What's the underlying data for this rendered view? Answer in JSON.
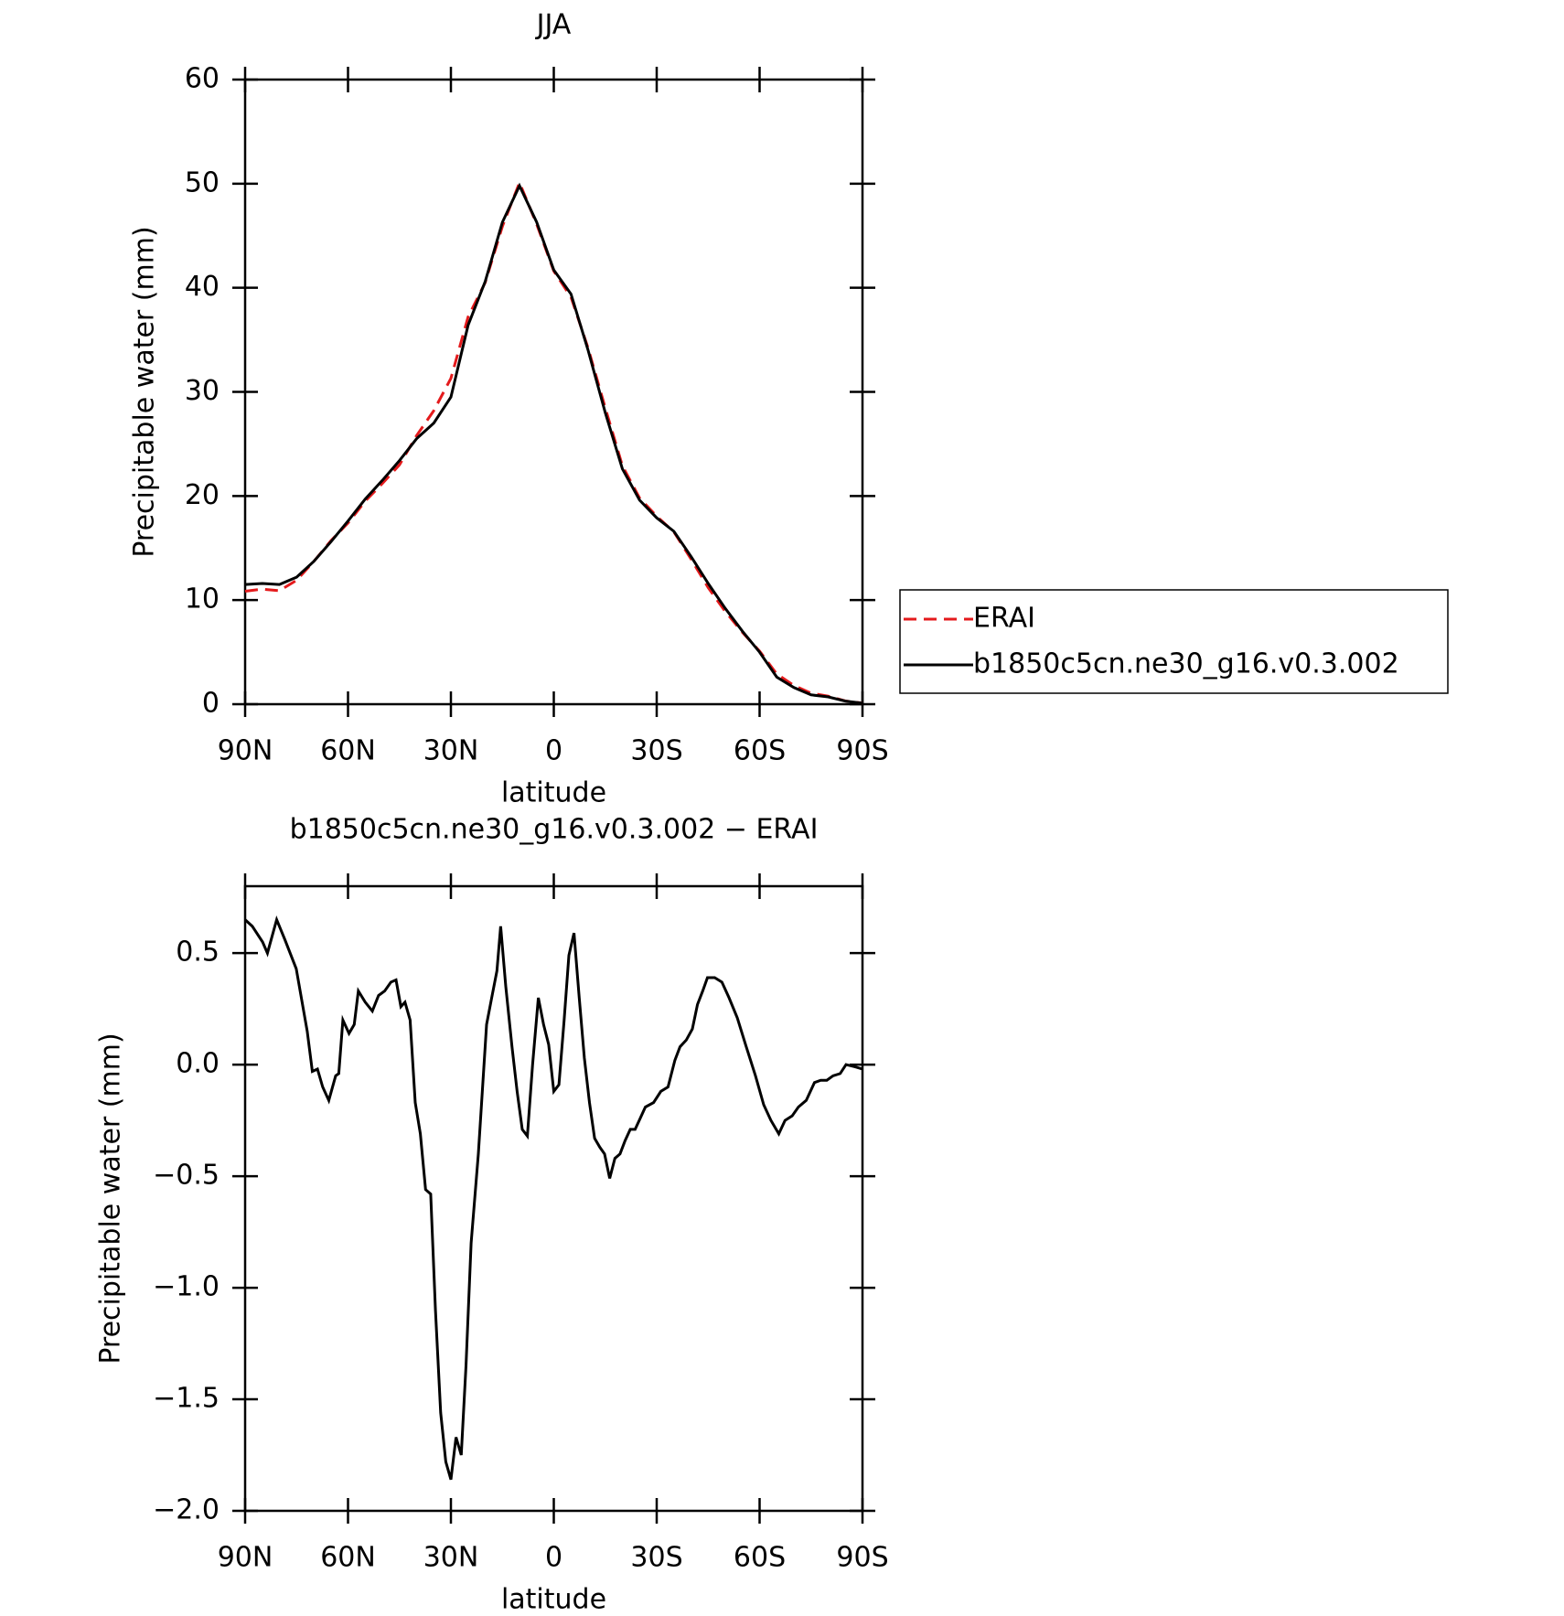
{
  "chart_data": [
    {
      "type": "line",
      "title": "JJA",
      "x_label": "latitude",
      "y_label": "Precipitable water (mm)",
      "x": [
        90,
        85,
        80,
        75,
        70,
        65,
        60,
        55,
        50,
        45,
        40,
        35,
        30,
        25,
        20,
        15,
        10,
        5,
        0,
        -5,
        -10,
        -15,
        -20,
        -25,
        -30,
        -35,
        -40,
        -45,
        -50,
        -55,
        -60,
        -65,
        -70,
        -75,
        -80,
        -85,
        -90
      ],
      "series": [
        {
          "name": "ERAI",
          "color": "#e41a1c",
          "linestyle": "dashed",
          "values": [
            10.85,
            11.05,
            10.9,
            11.9,
            13.7,
            15.7,
            17.4,
            19.5,
            21.2,
            23.0,
            25.8,
            28.2,
            31.3,
            37.2,
            40.5,
            45.9,
            50.1,
            46.1,
            41.6,
            39.1,
            34.2,
            28.45,
            22.9,
            19.8,
            18.05,
            16.55,
            13.95,
            11.2,
            8.9,
            6.9,
            5.1,
            2.9,
            1.8,
            1.05,
            0.77,
            0.31,
            0.11
          ]
        },
        {
          "name": "b1850c5cn.ne30_g16.v0.3.002",
          "color": "#000000",
          "linestyle": "solid",
          "values": [
            11.5,
            11.6,
            11.5,
            12.2,
            13.7,
            15.6,
            17.6,
            19.7,
            21.5,
            23.4,
            25.5,
            27.0,
            29.5,
            36.4,
            40.6,
            46.3,
            49.8,
            46.3,
            41.7,
            39.4,
            34.0,
            28.0,
            22.6,
            19.6,
            17.9,
            16.6,
            14.2,
            11.6,
            9.2,
            7.0,
            5.0,
            2.6,
            1.6,
            0.9,
            0.7,
            0.3,
            0.1
          ]
        }
      ],
      "xlim": [
        90,
        -90
      ],
      "xticks": [
        {
          "value": 90,
          "label": "90N"
        },
        {
          "value": 60,
          "label": "60N"
        },
        {
          "value": 30,
          "label": "30N"
        },
        0,
        {
          "value": -30,
          "label": "30S"
        },
        {
          "value": -60,
          "label": "60S"
        },
        {
          "value": -90,
          "label": "90S"
        }
      ],
      "ylim": [
        0,
        60
      ],
      "yticks": [
        0,
        10,
        20,
        30,
        40,
        50,
        60
      ],
      "legend": "right"
    },
    {
      "type": "line",
      "title": "b1850c5cn.ne30_g16.v0.3.002 − ERAI",
      "x_label": "latitude",
      "y_label": "Precipitable water (mm)",
      "x": [
        90,
        87.9,
        84.9,
        83.5,
        80.8,
        78.4,
        75.1,
        73.4,
        71.9,
        70.4,
        68.9,
        67.4,
        65.6,
        63.6,
        62.7,
        61.5,
        59.7,
        58.2,
        57.0,
        55.0,
        52.9,
        51.1,
        49.3,
        47.5,
        46.0,
        44.6,
        43.4,
        41.9,
        40.4,
        38.9,
        37.4,
        35.9,
        34.5,
        33.0,
        31.5,
        30.0,
        28.5,
        27.0,
        25.6,
        24.1,
        22.0,
        19.6,
        18.1,
        16.6,
        15.5,
        14.0,
        12.2,
        10.7,
        9.2,
        7.7,
        6.2,
        4.5,
        3.0,
        1.5,
        0.0,
        -1.5,
        -3.0,
        -4.4,
        -5.9,
        -7.4,
        -8.9,
        -10.4,
        -11.9,
        -13.4,
        -14.8,
        -16.3,
        -17.8,
        -19.3,
        -20.8,
        -22.3,
        -23.7,
        -25.2,
        -26.7,
        -29.1,
        -31.2,
        -33.3,
        -35.3,
        -36.8,
        -38.6,
        -40.4,
        -41.9,
        -43.4,
        -44.8,
        -46.9,
        -49.0,
        -51.1,
        -53.5,
        -56.1,
        -58.8,
        -61.2,
        -63.3,
        -65.6,
        -67.4,
        -69.5,
        -71.3,
        -73.6,
        -76.0,
        -77.8,
        -79.6,
        -81.4,
        -83.5,
        -85.2,
        -87.9,
        -90
      ],
      "values": [
        0.65,
        0.62,
        0.55,
        0.5,
        0.65,
        0.56,
        0.43,
        0.28,
        0.15,
        -0.03,
        -0.02,
        -0.1,
        -0.16,
        -0.05,
        -0.04,
        0.2,
        0.14,
        0.18,
        0.33,
        0.28,
        0.24,
        0.31,
        0.33,
        0.37,
        0.38,
        0.26,
        0.28,
        0.2,
        -0.17,
        -0.31,
        -0.56,
        -0.58,
        -1.1,
        -1.56,
        -1.78,
        -1.86,
        -1.67,
        -1.75,
        -1.35,
        -0.8,
        -0.4,
        0.18,
        0.3,
        0.42,
        0.62,
        0.35,
        0.08,
        -0.12,
        -0.29,
        -0.32,
        0.0,
        0.3,
        0.18,
        0.09,
        -0.12,
        -0.09,
        0.2,
        0.49,
        0.59,
        0.3,
        0.03,
        -0.17,
        -0.33,
        -0.37,
        -0.4,
        -0.51,
        -0.42,
        -0.4,
        -0.34,
        -0.29,
        -0.29,
        -0.24,
        -0.19,
        -0.17,
        -0.12,
        -0.1,
        0.02,
        0.08,
        0.11,
        0.16,
        0.27,
        0.33,
        0.39,
        0.39,
        0.37,
        0.3,
        0.21,
        0.08,
        -0.05,
        -0.18,
        -0.25,
        -0.31,
        -0.25,
        -0.23,
        -0.19,
        -0.16,
        -0.08,
        -0.07,
        -0.07,
        -0.05,
        -0.04,
        0.0,
        -0.01,
        -0.02
      ],
      "color": "#000000",
      "xlim": [
        90,
        -90
      ],
      "xticks": [
        {
          "value": 90,
          "label": "90N"
        },
        {
          "value": 60,
          "label": "60N"
        },
        {
          "value": 30,
          "label": "30N"
        },
        0,
        {
          "value": -30,
          "label": "30S"
        },
        {
          "value": -60,
          "label": "60S"
        },
        {
          "value": -90,
          "label": "90S"
        }
      ],
      "ylim": [
        -2.0,
        0.8
      ],
      "yticks": [
        {
          "value": -2.0,
          "label": "−2.0"
        },
        {
          "value": -1.5,
          "label": "−1.5"
        },
        {
          "value": -1.0,
          "label": "−1.0"
        },
        {
          "value": -0.5,
          "label": "−0.5"
        },
        {
          "value": 0.0,
          "label": "0.0"
        },
        0.5
      ]
    }
  ]
}
